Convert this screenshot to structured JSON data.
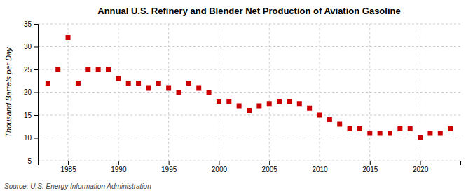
{
  "chart_data": {
    "type": "scatter",
    "title": "Annual U.S. Refinery and Blender Net Production of Aviation Gasoline",
    "y_label": "Thousand Barrels per Day",
    "annotations": [
      "Source: U.S. Energy Information Administration"
    ],
    "x": [
      1983,
      1984,
      1985,
      1986,
      1987,
      1988,
      1989,
      1990,
      1991,
      1992,
      1993,
      1994,
      1995,
      1996,
      1997,
      1998,
      1999,
      2000,
      2001,
      2002,
      2003,
      2004,
      2005,
      2006,
      2007,
      2008,
      2009,
      2010,
      2011,
      2012,
      2013,
      2014,
      2015,
      2016,
      2017,
      2018,
      2019,
      2020,
      2021,
      2022,
      2023
    ],
    "values": [
      22.0,
      25.0,
      32.0,
      22.0,
      25.0,
      25.0,
      25.0,
      23.0,
      22.0,
      22.0,
      21.0,
      22.0,
      21.0,
      20.0,
      22.0,
      21.0,
      20.0,
      18.0,
      18.0,
      17.0,
      16.0,
      17.0,
      17.5,
      18.0,
      18.0,
      17.5,
      16.5,
      15.0,
      14.0,
      13.0,
      12.0,
      12.0,
      11.0,
      11.0,
      11.0,
      12.0,
      12.0,
      10.0,
      11.0,
      11.0,
      12.0
    ],
    "color": "#cc0000",
    "marker": "square",
    "xlim": [
      1982,
      2024
    ],
    "xticks": [
      1985,
      1990,
      1995,
      2000,
      2005,
      2010,
      2015,
      2020
    ],
    "ylim": [
      5,
      35
    ],
    "yticks": [
      5,
      10,
      15,
      20,
      25,
      30,
      35
    ],
    "grid": true
  }
}
